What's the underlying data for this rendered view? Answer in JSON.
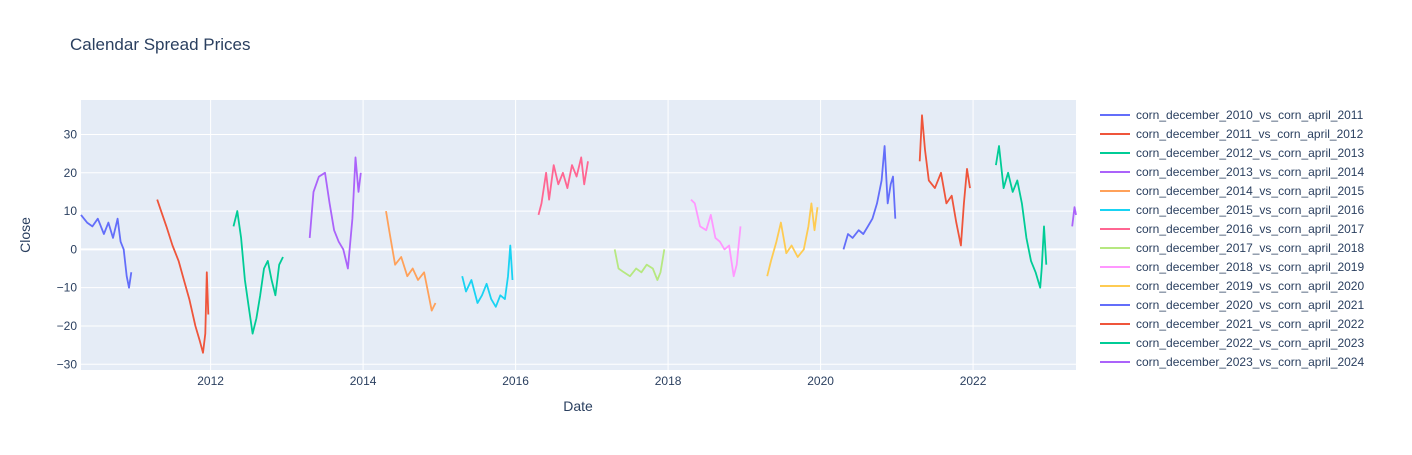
{
  "chart_data": {
    "type": "line",
    "title": "Calendar Spread Prices",
    "xlabel": "Date",
    "ylabel": "Close",
    "xlim": [
      2010.3,
      2023.35
    ],
    "ylim": [
      -31.5,
      39
    ],
    "x_ticks": [
      2012,
      2014,
      2016,
      2018,
      2020,
      2022
    ],
    "y_ticks": [
      -30,
      -20,
      -10,
      0,
      10,
      20,
      30
    ],
    "grid": true,
    "legend_position": "right",
    "series": [
      {
        "name": "corn_december_2010_vs_corn_april_2011",
        "color": "#636efa",
        "x": [
          2010.3,
          2010.38,
          2010.45,
          2010.52,
          2010.6,
          2010.66,
          2010.72,
          2010.78,
          2010.82,
          2010.86,
          2010.9,
          2010.93,
          2010.96
        ],
        "y": [
          9,
          7,
          6,
          8,
          4,
          7,
          3,
          8,
          2,
          0,
          -7,
          -10,
          -6
        ]
      },
      {
        "name": "corn_december_2011_vs_corn_april_2012",
        "color": "#ef553b",
        "x": [
          2011.3,
          2011.35,
          2011.42,
          2011.5,
          2011.58,
          2011.65,
          2011.72,
          2011.8,
          2011.86,
          2011.9,
          2011.93,
          2011.95,
          2011.97
        ],
        "y": [
          13,
          10,
          6,
          1,
          -3,
          -8,
          -13,
          -20,
          -24,
          -27,
          -22,
          -6,
          -17
        ]
      },
      {
        "name": "corn_december_2012_vs_corn_april_2013",
        "color": "#00cc96",
        "x": [
          2012.3,
          2012.35,
          2012.4,
          2012.45,
          2012.5,
          2012.55,
          2012.6,
          2012.65,
          2012.7,
          2012.75,
          2012.8,
          2012.85,
          2012.9,
          2012.95
        ],
        "y": [
          6,
          10,
          3,
          -8,
          -15,
          -22,
          -18,
          -12,
          -5,
          -3,
          -8,
          -12,
          -4,
          -2
        ]
      },
      {
        "name": "corn_december_2013_vs_corn_april_2014",
        "color": "#ab63fa",
        "x": [
          2013.3,
          2013.35,
          2013.42,
          2013.5,
          2013.56,
          2013.62,
          2013.68,
          2013.74,
          2013.8,
          2013.86,
          2013.9,
          2013.94,
          2013.97
        ],
        "y": [
          3,
          15,
          19,
          20,
          12,
          5,
          2,
          0,
          -5,
          8,
          24,
          15,
          20
        ]
      },
      {
        "name": "corn_december_2014_vs_corn_april_2015",
        "color": "#ffa15a",
        "x": [
          2014.3,
          2014.35,
          2014.42,
          2014.5,
          2014.58,
          2014.65,
          2014.72,
          2014.8,
          2014.86,
          2014.9,
          2014.95
        ],
        "y": [
          10,
          4,
          -4,
          -2,
          -7,
          -5,
          -8,
          -6,
          -12,
          -16,
          -14
        ]
      },
      {
        "name": "corn_december_2015_vs_corn_april_2016",
        "color": "#19d3f3",
        "x": [
          2015.3,
          2015.35,
          2015.42,
          2015.5,
          2015.56,
          2015.62,
          2015.68,
          2015.74,
          2015.8,
          2015.86,
          2015.9,
          2015.93,
          2015.96
        ],
        "y": [
          -7,
          -11,
          -8,
          -14,
          -12,
          -9,
          -13,
          -15,
          -12,
          -13,
          -7,
          1,
          -8
        ]
      },
      {
        "name": "corn_december_2016_vs_corn_april_2017",
        "color": "#ff6692",
        "x": [
          2016.3,
          2016.34,
          2016.4,
          2016.44,
          2016.5,
          2016.56,
          2016.62,
          2016.68,
          2016.74,
          2016.8,
          2016.86,
          2016.9,
          2016.95
        ],
        "y": [
          9,
          12,
          20,
          13,
          22,
          17,
          20,
          16,
          22,
          19,
          24,
          17,
          23
        ]
      },
      {
        "name": "corn_december_2017_vs_corn_april_2018",
        "color": "#b6e880",
        "x": [
          2017.3,
          2017.35,
          2017.42,
          2017.5,
          2017.58,
          2017.65,
          2017.72,
          2017.8,
          2017.86,
          2017.9,
          2017.95
        ],
        "y": [
          0,
          -5,
          -6,
          -7,
          -5,
          -6,
          -4,
          -5,
          -8,
          -6,
          0
        ]
      },
      {
        "name": "corn_december_2018_vs_corn_april_2019",
        "color": "#ff97ff",
        "x": [
          2018.3,
          2018.35,
          2018.42,
          2018.5,
          2018.56,
          2018.62,
          2018.68,
          2018.74,
          2018.8,
          2018.86,
          2018.9,
          2018.95
        ],
        "y": [
          13,
          12,
          6,
          5,
          9,
          3,
          2,
          0,
          1,
          -7,
          -4,
          6
        ]
      },
      {
        "name": "corn_december_2019_vs_corn_april_2020",
        "color": "#fecb52",
        "x": [
          2019.3,
          2019.35,
          2019.42,
          2019.48,
          2019.55,
          2019.62,
          2019.7,
          2019.78,
          2019.84,
          2019.88,
          2019.92,
          2019.96
        ],
        "y": [
          -7,
          -3,
          2,
          7,
          -1,
          1,
          -2,
          0,
          6,
          12,
          5,
          11
        ]
      },
      {
        "name": "corn_december_2020_vs_corn_april_2021",
        "color": "#636efa",
        "x": [
          2020.3,
          2020.36,
          2020.42,
          2020.5,
          2020.56,
          2020.62,
          2020.68,
          2020.74,
          2020.8,
          2020.84,
          2020.88,
          2020.92,
          2020.95,
          2020.98
        ],
        "y": [
          0,
          4,
          3,
          5,
          4,
          6,
          8,
          12,
          18,
          27,
          12,
          17,
          19,
          8
        ]
      },
      {
        "name": "corn_december_2021_vs_corn_april_2022",
        "color": "#ef553b",
        "x": [
          2021.3,
          2021.33,
          2021.37,
          2021.42,
          2021.5,
          2021.58,
          2021.65,
          2021.72,
          2021.78,
          2021.84,
          2021.88,
          2021.92,
          2021.96
        ],
        "y": [
          23,
          35,
          26,
          18,
          16,
          20,
          12,
          14,
          7,
          1,
          12,
          21,
          16
        ]
      },
      {
        "name": "corn_december_2022_vs_corn_april_2023",
        "color": "#00cc96",
        "x": [
          2022.3,
          2022.34,
          2022.4,
          2022.46,
          2022.52,
          2022.58,
          2022.64,
          2022.7,
          2022.76,
          2022.82,
          2022.88,
          2022.9,
          2022.93,
          2022.96
        ],
        "y": [
          22,
          27,
          16,
          20,
          15,
          18,
          12,
          3,
          -3,
          -6,
          -10,
          -5,
          6,
          -4
        ]
      },
      {
        "name": "corn_december_2023_vs_corn_april_2024",
        "color": "#ab63fa",
        "x": [
          2023.3,
          2023.33,
          2023.35
        ],
        "y": [
          6,
          11,
          9
        ]
      }
    ]
  }
}
